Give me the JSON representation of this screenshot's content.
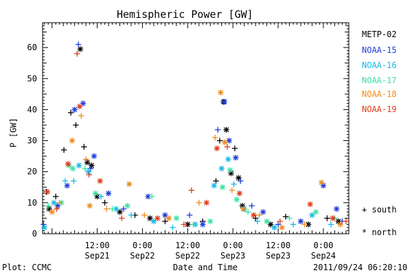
{
  "chart_data": {
    "type": "scatter",
    "title": "Hemispheric Power [GW]",
    "ylabel": "P [GW]",
    "xlabel": "Date and Time",
    "ylim": [
      0,
      68
    ],
    "yticks": [
      0,
      10,
      20,
      30,
      40,
      50,
      60
    ],
    "xlim": [
      "2011-09-20T21:30",
      "2011-09-24T06:45"
    ],
    "xticks": [
      {
        "time": "2011-09-21T12:00",
        "top": "12:00",
        "bottom": "Sep21"
      },
      {
        "time": "2011-09-22T00:00",
        "top": "0:00",
        "bottom": "Sep22"
      },
      {
        "time": "2011-09-22T12:00",
        "top": "12:00",
        "bottom": "Sep22"
      },
      {
        "time": "2011-09-23T00:00",
        "top": "0:00",
        "bottom": "Sep23"
      },
      {
        "time": "2011-09-23T12:00",
        "top": "12:00",
        "bottom": "Sep23"
      },
      {
        "time": "2011-09-24T00:00",
        "top": "0:00",
        "bottom": "Sep24"
      }
    ],
    "footer_left": "Plot: CCMC",
    "footer_right": "2011/09/24 06:20:10",
    "hemisphere_legend": [
      {
        "marker": "+",
        "label": "south"
      },
      {
        "marker": "*",
        "label": "north"
      }
    ],
    "series": [
      {
        "name": "METP-02",
        "color": "#000000",
        "points": [
          [
            "2011-09-20T22:30",
            13.5,
            "+"
          ],
          [
            "2011-09-20T23:15",
            8,
            "*"
          ],
          [
            "2011-09-21T01:00",
            12,
            "+"
          ],
          [
            "2011-09-21T03:10",
            27,
            "+"
          ],
          [
            "2011-09-21T05:00",
            39,
            "+"
          ],
          [
            "2011-09-21T06:20",
            35,
            "+"
          ],
          [
            "2011-09-21T07:30",
            59.5,
            "*"
          ],
          [
            "2011-09-21T08:30",
            28,
            "+"
          ],
          [
            "2011-09-21T09:20",
            23,
            "*"
          ],
          [
            "2011-09-21T10:30",
            22,
            "*"
          ],
          [
            "2011-09-21T12:00",
            12,
            "*"
          ],
          [
            "2011-09-21T14:00",
            10,
            "+"
          ],
          [
            "2011-09-21T18:00",
            7,
            "*"
          ],
          [
            "2011-09-21T22:00",
            6,
            "+"
          ],
          [
            "2011-09-22T02:00",
            5,
            "*"
          ],
          [
            "2011-09-22T06:00",
            4,
            "+"
          ],
          [
            "2011-09-22T12:00",
            3,
            "*"
          ],
          [
            "2011-09-22T16:00",
            4,
            "+"
          ],
          [
            "2011-09-22T19:30",
            17,
            "+"
          ],
          [
            "2011-09-22T20:30",
            30,
            "+"
          ],
          [
            "2011-09-22T21:30",
            42.5,
            "*"
          ],
          [
            "2011-09-22T22:15",
            33.5,
            "*"
          ],
          [
            "2011-09-22T23:30",
            19.5,
            "*"
          ],
          [
            "2011-09-23T00:30",
            27.5,
            "+"
          ],
          [
            "2011-09-23T01:30",
            18,
            "*"
          ],
          [
            "2011-09-23T02:30",
            9,
            "*"
          ],
          [
            "2011-09-23T06:00",
            5,
            "+"
          ],
          [
            "2011-09-23T10:00",
            3,
            "*"
          ],
          [
            "2011-09-23T14:00",
            5.5,
            "+"
          ],
          [
            "2011-09-23T20:00",
            3,
            "*"
          ],
          [
            "2011-09-24T01:00",
            5,
            "+"
          ],
          [
            "2011-09-24T04:00",
            4,
            "*"
          ]
        ]
      },
      {
        "name": "NOAA-15",
        "color": "#1f3bd6",
        "points": [
          [
            "2011-09-20T21:45",
            3,
            "+"
          ],
          [
            "2011-09-21T01:30",
            9,
            "*"
          ],
          [
            "2011-09-21T04:00",
            15.5,
            "*"
          ],
          [
            "2011-09-21T06:00",
            40,
            "*"
          ],
          [
            "2011-09-21T07:00",
            61,
            "+"
          ],
          [
            "2011-09-21T08:15",
            42,
            "*"
          ],
          [
            "2011-09-21T10:15",
            21,
            "+"
          ],
          [
            "2011-09-21T11:10",
            25,
            "*"
          ],
          [
            "2011-09-21T15:00",
            13,
            "*"
          ],
          [
            "2011-09-21T19:00",
            8,
            "+"
          ],
          [
            "2011-09-22T01:30",
            12,
            "*"
          ],
          [
            "2011-09-22T06:00",
            6,
            "*"
          ],
          [
            "2011-09-22T12:30",
            6,
            "+"
          ],
          [
            "2011-09-22T16:00",
            3,
            "*"
          ],
          [
            "2011-09-22T20:00",
            33.5,
            "+"
          ],
          [
            "2011-09-22T21:45",
            42.5,
            "*"
          ],
          [
            "2011-09-22T23:00",
            30,
            "*"
          ],
          [
            "2011-09-23T00:45",
            24.5,
            "*"
          ],
          [
            "2011-09-23T02:00",
            17,
            "+"
          ],
          [
            "2011-09-23T05:00",
            9,
            "+"
          ],
          [
            "2011-09-23T08:00",
            7,
            "*"
          ],
          [
            "2011-09-23T12:00",
            3,
            "+"
          ],
          [
            "2011-09-23T18:00",
            4,
            "*"
          ],
          [
            "2011-09-24T00:00",
            15.5,
            "*"
          ],
          [
            "2011-09-24T03:30",
            8,
            "*"
          ],
          [
            "2011-09-24T05:00",
            4,
            "+"
          ]
        ]
      },
      {
        "name": "NOAA-16",
        "color": "#16b8e6",
        "points": [
          [
            "2011-09-20T22:00",
            2,
            "*"
          ],
          [
            "2011-09-21T00:30",
            10,
            "*"
          ],
          [
            "2011-09-21T03:30",
            17,
            "+"
          ],
          [
            "2011-09-21T05:45",
            17,
            "+"
          ],
          [
            "2011-09-21T07:10",
            22,
            "*"
          ],
          [
            "2011-09-21T09:40",
            20,
            "*"
          ],
          [
            "2011-09-21T13:00",
            12,
            "+"
          ],
          [
            "2011-09-21T17:00",
            8,
            "*"
          ],
          [
            "2011-09-21T21:00",
            6,
            "+"
          ],
          [
            "2011-09-22T03:00",
            4,
            "*"
          ],
          [
            "2011-09-22T08:00",
            2,
            "+"
          ],
          [
            "2011-09-22T14:00",
            3,
            "*"
          ],
          [
            "2011-09-22T19:00",
            15.5,
            "*"
          ],
          [
            "2011-09-22T21:00",
            21,
            "*"
          ],
          [
            "2011-09-22T22:45",
            24,
            "*"
          ],
          [
            "2011-09-23T00:15",
            16,
            "+"
          ],
          [
            "2011-09-23T03:00",
            8,
            "*"
          ],
          [
            "2011-09-23T06:30",
            4,
            "+"
          ],
          [
            "2011-09-23T11:00",
            2,
            "*"
          ],
          [
            "2011-09-23T16:00",
            3,
            "+"
          ],
          [
            "2011-09-23T21:00",
            6,
            "*"
          ],
          [
            "2011-09-24T02:00",
            3,
            "+"
          ]
        ]
      },
      {
        "name": "NOAA-17",
        "color": "#3de0a0",
        "points": [
          [
            "2011-09-20T23:00",
            9,
            "+"
          ],
          [
            "2011-09-21T02:30",
            10,
            "*"
          ],
          [
            "2011-09-21T04:30",
            22,
            "*"
          ],
          [
            "2011-09-21T05:30",
            21,
            "*"
          ],
          [
            "2011-09-21T08:45",
            21,
            "+"
          ],
          [
            "2011-09-21T11:30",
            13,
            "*"
          ],
          [
            "2011-09-21T16:00",
            8,
            "+"
          ],
          [
            "2011-09-21T20:00",
            9,
            "*"
          ],
          [
            "2011-09-22T02:30",
            12,
            "+"
          ],
          [
            "2011-09-22T09:00",
            5,
            "*"
          ],
          [
            "2011-09-22T13:30",
            3,
            "+"
          ],
          [
            "2011-09-22T18:00",
            4,
            "*"
          ],
          [
            "2011-09-22T21:15",
            15,
            "*"
          ],
          [
            "2011-09-22T23:15",
            20.5,
            "*"
          ],
          [
            "2011-09-23T01:00",
            11,
            "*"
          ],
          [
            "2011-09-23T04:00",
            7,
            "+"
          ],
          [
            "2011-09-23T09:00",
            4,
            "*"
          ],
          [
            "2011-09-23T15:00",
            5,
            "+"
          ],
          [
            "2011-09-23T22:00",
            7,
            "*"
          ],
          [
            "2011-09-24T03:00",
            5,
            "+"
          ]
        ]
      },
      {
        "name": "NOAA-18",
        "color": "#f08a1c",
        "points": [
          [
            "2011-09-21T00:00",
            7,
            "*"
          ],
          [
            "2011-09-21T02:00",
            10,
            "+"
          ],
          [
            "2011-09-21T05:20",
            30,
            "*"
          ],
          [
            "2011-09-21T07:45",
            38,
            "+"
          ],
          [
            "2011-09-21T09:00",
            24,
            "+"
          ],
          [
            "2011-09-21T10:00",
            9,
            "*"
          ],
          [
            "2011-09-21T14:30",
            8,
            "+"
          ],
          [
            "2011-09-21T20:30",
            16,
            "*"
          ],
          [
            "2011-09-22T00:30",
            6,
            "+"
          ],
          [
            "2011-09-22T07:00",
            5,
            "*"
          ],
          [
            "2011-09-22T15:00",
            10,
            "+"
          ],
          [
            "2011-09-22T19:15",
            31,
            "+"
          ],
          [
            "2011-09-22T20:45",
            45.5,
            "*"
          ],
          [
            "2011-09-22T21:50",
            29.5,
            "*"
          ],
          [
            "2011-09-22T23:45",
            14,
            "+"
          ],
          [
            "2011-09-23T02:45",
            8,
            "*"
          ],
          [
            "2011-09-23T07:00",
            6,
            "+"
          ],
          [
            "2011-09-23T13:00",
            2,
            "*"
          ],
          [
            "2011-09-23T19:00",
            3,
            "+"
          ],
          [
            "2011-09-23T23:30",
            16.5,
            "*"
          ],
          [
            "2011-09-24T04:30",
            3,
            "*"
          ]
        ]
      },
      {
        "name": "NOAA-19",
        "color": "#e03a1a",
        "points": [
          [
            "2011-09-20T22:45",
            13.5,
            "*"
          ],
          [
            "2011-09-21T01:15",
            8,
            "+"
          ],
          [
            "2011-09-21T04:15",
            22.5,
            "*"
          ],
          [
            "2011-09-21T06:40",
            58,
            "+"
          ],
          [
            "2011-09-21T07:20",
            41,
            "*"
          ],
          [
            "2011-09-21T09:50",
            19,
            "+"
          ],
          [
            "2011-09-21T12:45",
            17,
            "*"
          ],
          [
            "2011-09-21T18:30",
            5,
            "+"
          ],
          [
            "2011-09-22T04:00",
            5,
            "*"
          ],
          [
            "2011-09-22T11:00",
            3,
            "+"
          ],
          [
            "2011-09-22T13:00",
            14,
            "+"
          ],
          [
            "2011-09-22T17:00",
            10,
            "*"
          ],
          [
            "2011-09-22T19:45",
            27.5,
            "*"
          ],
          [
            "2011-09-22T22:30",
            28,
            "+"
          ],
          [
            "2011-09-23T01:45",
            13,
            "*"
          ],
          [
            "2011-09-23T05:30",
            6,
            "*"
          ],
          [
            "2011-09-23T12:30",
            4,
            "+"
          ],
          [
            "2011-09-23T20:30",
            9.5,
            "*"
          ],
          [
            "2011-09-24T02:30",
            5,
            "*"
          ],
          [
            "2011-09-24T06:00",
            4,
            "+"
          ]
        ]
      }
    ]
  }
}
